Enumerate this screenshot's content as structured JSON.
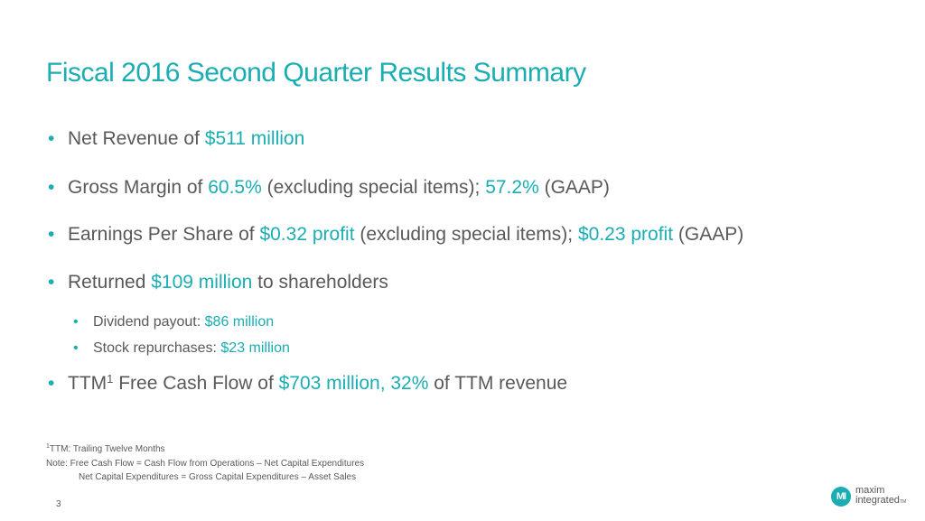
{
  "title": "Fiscal 2016 Second Quarter Results Summary",
  "bullets": {
    "b1": {
      "pre": "Net Revenue of ",
      "hl": "$511 million"
    },
    "b2": {
      "pre": "Gross Margin of ",
      "hl1": "60.5%",
      "mid": " (excluding special items); ",
      "hl2": "57.2%",
      "post": " (GAAP)"
    },
    "b3": {
      "pre": "Earnings Per Share of ",
      "hl1": "$0.32 profit",
      "mid": " (excluding special items); ",
      "hl2": "$0.23 profit",
      "post": " (GAAP)"
    },
    "b4": {
      "pre": "Returned ",
      "hl": "$109 million",
      "post": " to shareholders"
    },
    "b4_sub": [
      {
        "pre": "Dividend payout: ",
        "hl": "$86 million"
      },
      {
        "pre": "Stock repurchases: ",
        "hl": "$23 million"
      }
    ],
    "b5": {
      "pre": "TTM",
      "sup": "1",
      "mid": " Free Cash Flow of ",
      "hl": "$703 million, 32%",
      "post": " of TTM revenue"
    }
  },
  "footnotes": {
    "ttm_sup": "1",
    "ttm": "TTM: Trailing Twelve Months",
    "note1": "Note: Free Cash Flow = Cash Flow from Operations – Net Capital Expenditures",
    "note2": "Net Capital Expenditures = Gross Capital Expenditures – Asset Sales"
  },
  "page_number": "3",
  "logo": {
    "mark": "MI",
    "line1": "maxim",
    "line2": "integrated",
    "tm": "TM"
  },
  "bullet_char": "•",
  "colors": {
    "accent": "#1AADB3",
    "text": "#595959"
  }
}
